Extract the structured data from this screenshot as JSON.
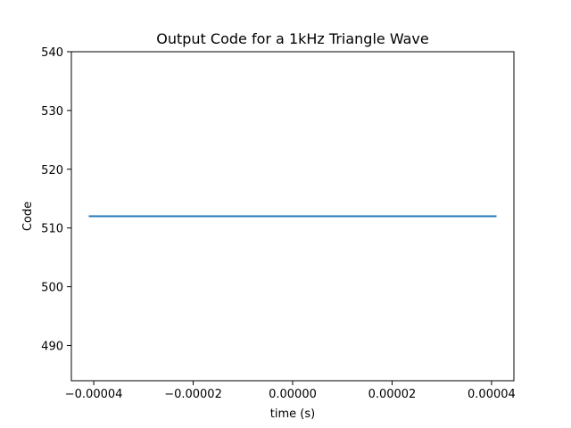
{
  "chart_data": {
    "type": "line",
    "title": "Output Code for a 1kHz Triangle Wave",
    "xlabel": "time (s)",
    "ylabel": "Code",
    "xlim": [
      -4.45e-05,
      4.45e-05
    ],
    "ylim": [
      484,
      540
    ],
    "xticks": [
      -4e-05,
      -2e-05,
      0.0,
      2e-05,
      4e-05
    ],
    "xtick_labels": [
      "−0.00004",
      "−0.00002",
      "0.00000",
      "0.00002",
      "0.00004"
    ],
    "yticks": [
      490,
      500,
      510,
      520,
      530,
      540
    ],
    "ytick_labels": [
      "490",
      "500",
      "510",
      "520",
      "530",
      "540"
    ],
    "grid": false,
    "series": [
      {
        "color": "#1f77b4",
        "x": [
          -4.1e-05,
          4.1e-05
        ],
        "y": [
          512,
          512
        ]
      }
    ]
  }
}
